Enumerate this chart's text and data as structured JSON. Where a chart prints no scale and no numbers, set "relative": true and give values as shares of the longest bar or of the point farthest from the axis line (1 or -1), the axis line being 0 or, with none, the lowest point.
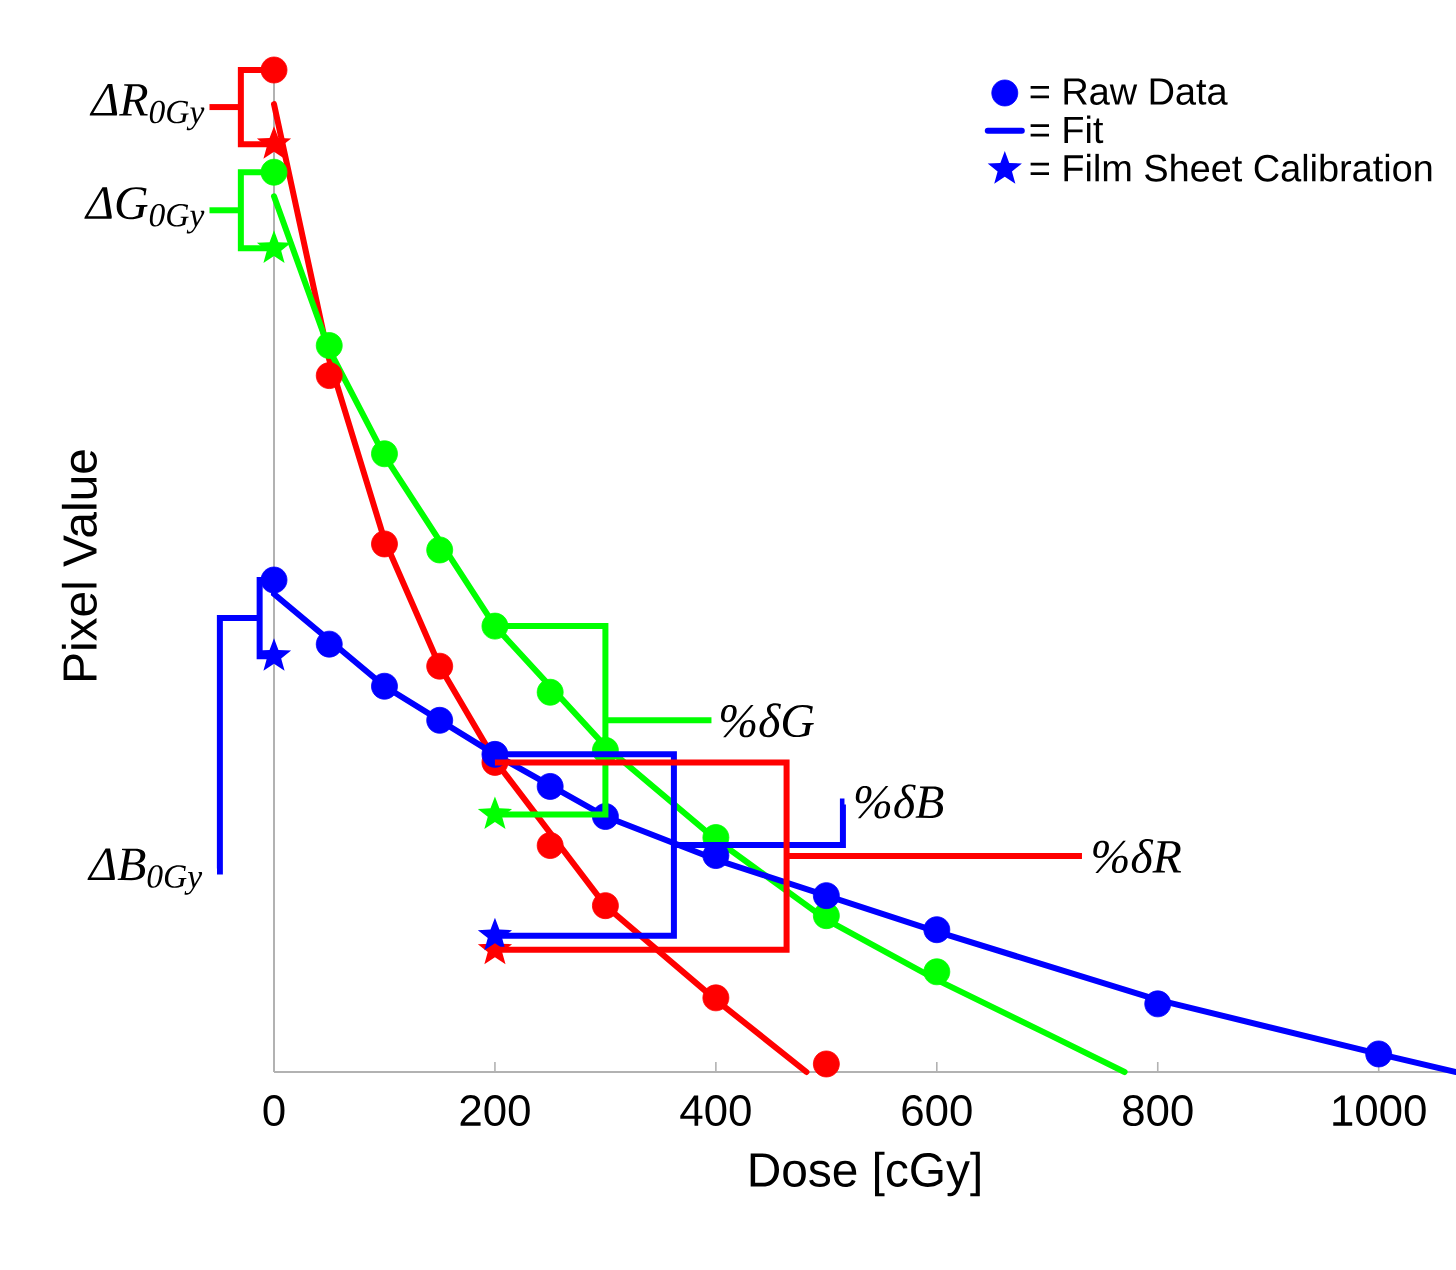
{
  "chart_data": {
    "type": "scatter",
    "relative": true,
    "xlabel": "Dose [cGy]",
    "ylabel": "Pixel Value",
    "xlim": [
      0,
      1070
    ],
    "xticks": [
      0,
      200,
      400,
      600,
      800,
      1000
    ],
    "legend": "top right",
    "series": [
      {
        "marker": "circle",
        "color": "#ff0000",
        "x": [
          0,
          50,
          100,
          150,
          200,
          250,
          300,
          400,
          500
        ],
        "values": [
          1.0,
          0.695,
          0.527,
          0.405,
          0.309,
          0.226,
          0.166,
          0.074,
          0.008
        ]
      },
      {
        "marker": "circle",
        "color": "#00ff00",
        "x": [
          0,
          50,
          100,
          150,
          200,
          250,
          300,
          400,
          500,
          600
        ],
        "values": [
          0.898,
          0.725,
          0.617,
          0.521,
          0.445,
          0.379,
          0.321,
          0.234,
          0.156,
          0.1
        ]
      },
      {
        "marker": "circle",
        "name": "= Raw Data",
        "color": "#0000ff",
        "x": [
          0,
          50,
          100,
          150,
          200,
          250,
          300,
          400,
          500,
          600,
          800,
          1000
        ],
        "values": [
          0.491,
          0.427,
          0.385,
          0.351,
          0.317,
          0.285,
          0.255,
          0.216,
          0.176,
          0.142,
          0.068,
          0.018
        ]
      },
      {
        "type": "line",
        "marker": "none",
        "color": "#ff0000",
        "x": [
          0,
          50,
          100,
          150,
          200,
          300,
          400,
          482
        ],
        "values": [
          0.966,
          0.711,
          0.531,
          0.405,
          0.311,
          0.166,
          0.072,
          0
        ]
      },
      {
        "type": "line",
        "marker": "none",
        "color": "#00ff00",
        "x": [
          0,
          50,
          100,
          200,
          300,
          400,
          500,
          600,
          700,
          770
        ],
        "values": [
          0.874,
          0.721,
          0.615,
          0.445,
          0.325,
          0.232,
          0.152,
          0.092,
          0.038,
          0
        ]
      },
      {
        "type": "line",
        "marker": "none",
        "name": "= Fit",
        "color": "#0000ff",
        "x": [
          0,
          100,
          200,
          300,
          400,
          500,
          600,
          800,
          1000,
          1070
        ],
        "values": [
          0.477,
          0.385,
          0.317,
          0.255,
          0.212,
          0.176,
          0.14,
          0.072,
          0.018,
          0
        ]
      },
      {
        "marker": "star",
        "color": "#ff0000",
        "x": [
          0,
          200
        ],
        "values": [
          0.926,
          0.122
        ]
      },
      {
        "marker": "star",
        "color": "#00ff00",
        "x": [
          0,
          200
        ],
        "values": [
          0.822,
          0.257
        ]
      },
      {
        "marker": "star",
        "name": "= Film Sheet Calibration",
        "color": "#0000ff",
        "x": [
          0,
          200
        ],
        "values": [
          0.415,
          0.136
        ]
      }
    ],
    "annotations": [
      "ΔR$_{0Gy}$",
      "ΔG$_{0Gy}$",
      "ΔB$_{0Gy}$",
      "%δG",
      "%δB",
      "%δR"
    ]
  }
}
